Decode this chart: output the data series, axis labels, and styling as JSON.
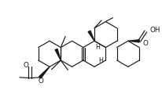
{
  "bg": "#ffffff",
  "lc": "#1a1a1a",
  "lw": 0.85,
  "fs": 5.8,
  "xlim": [
    -2.5,
    11.5
  ],
  "ylim": [
    -0.5,
    7.5
  ]
}
